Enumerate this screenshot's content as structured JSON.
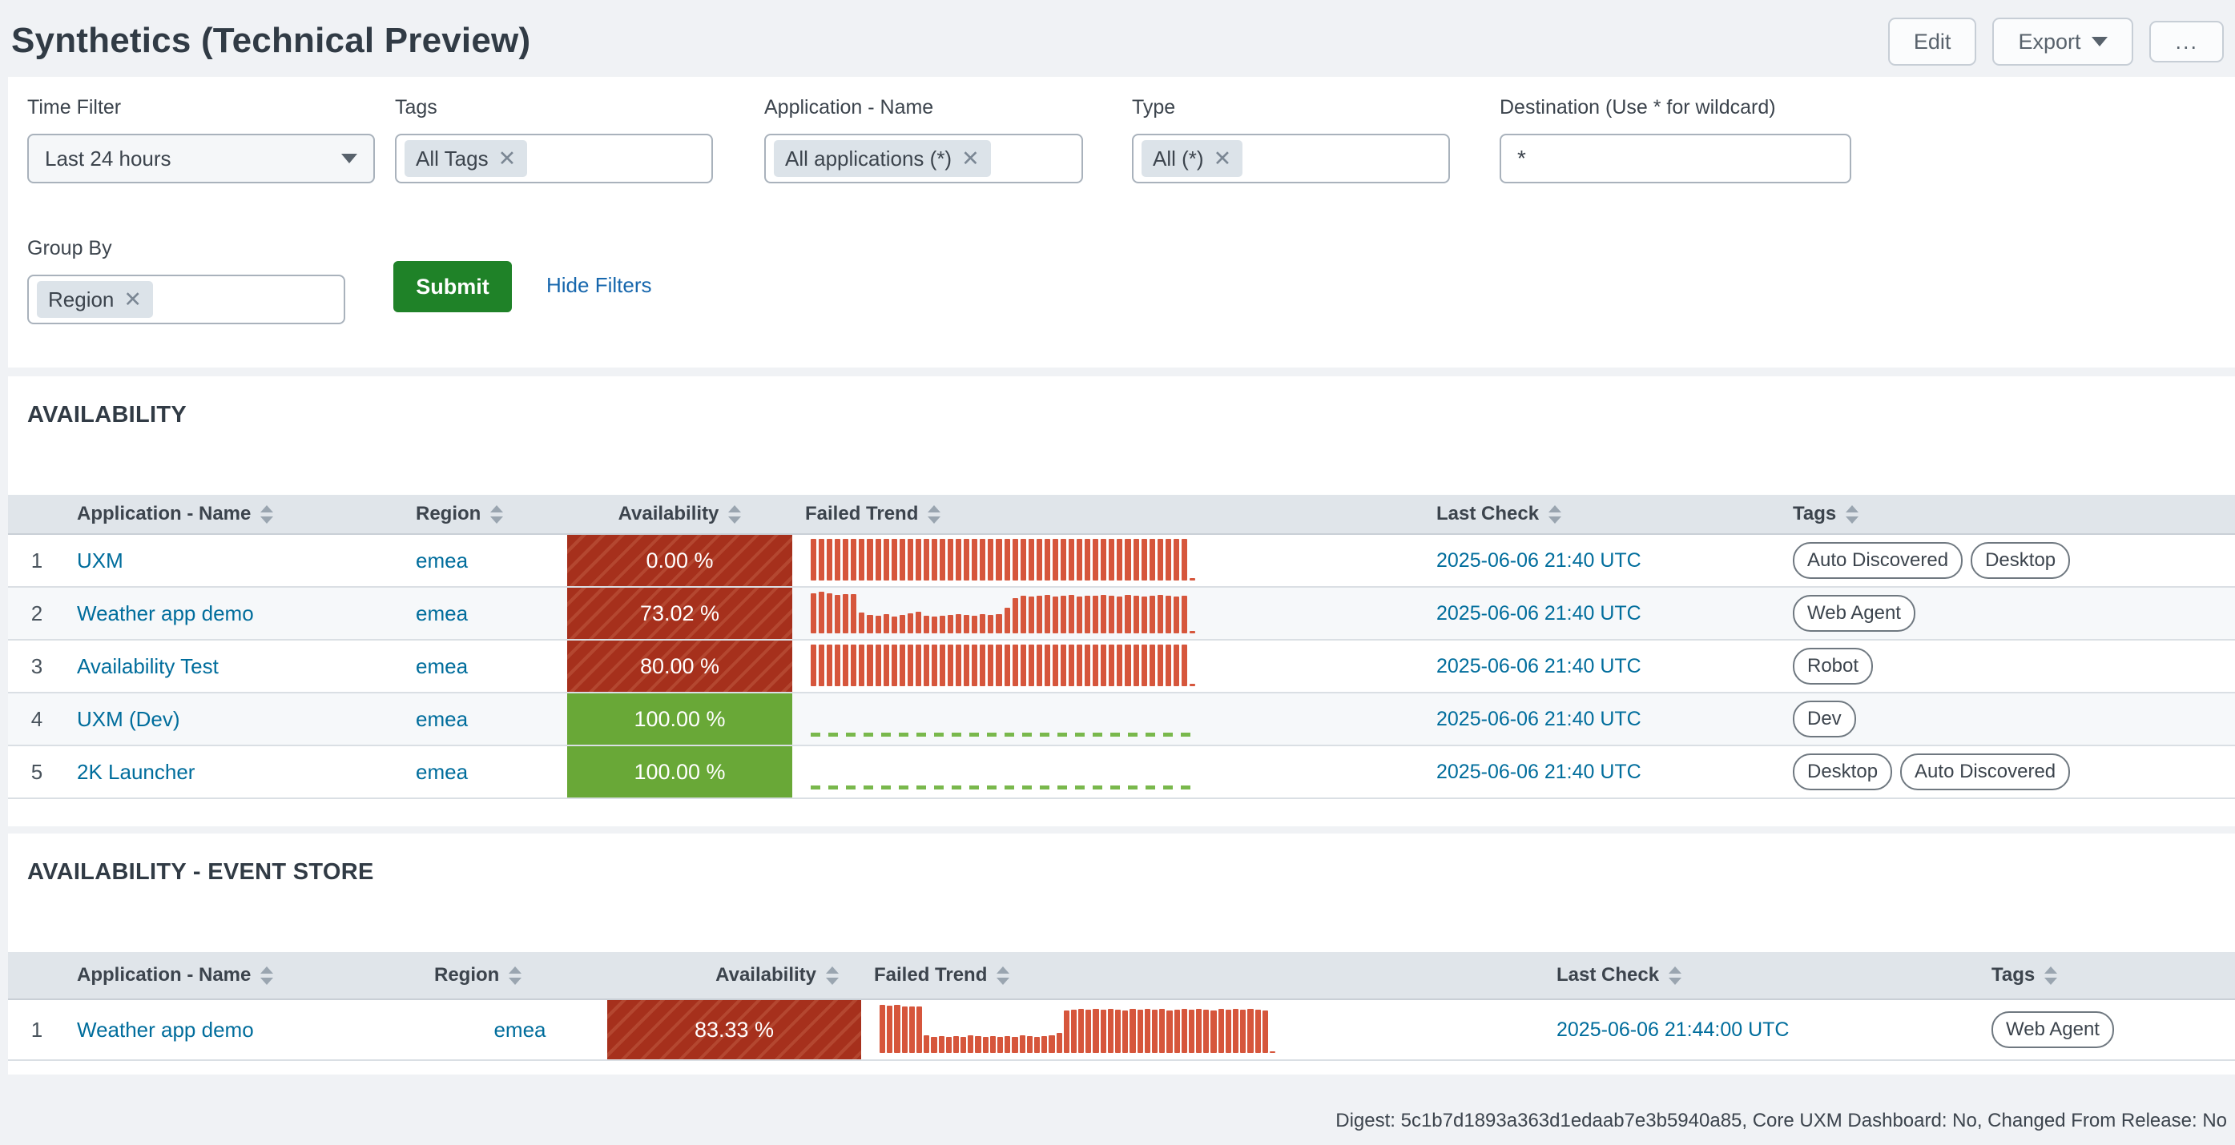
{
  "page": {
    "title": "Synthetics (Technical Preview)"
  },
  "toolbar": {
    "edit_label": "Edit",
    "export_label": "Export",
    "more_label": "..."
  },
  "filters": {
    "time_filter": {
      "label": "Time Filter",
      "value": "Last 24 hours"
    },
    "tags": {
      "label": "Tags",
      "chip": "All Tags"
    },
    "application": {
      "label": "Application - Name",
      "chip": "All applications (*)"
    },
    "type": {
      "label": "Type",
      "chip": "All (*)"
    },
    "destination": {
      "label": "Destination (Use * for wildcard)",
      "value": "*"
    },
    "group_by": {
      "label": "Group By",
      "chip": "Region"
    },
    "submit_label": "Submit",
    "hide_filters_label": "Hide Filters"
  },
  "colors": {
    "critical_red": "#a6301c",
    "ok_green": "#69a837",
    "spark_red": "#d6563c",
    "spark_zero_green": "#79b84c",
    "submit_green": "#1f8228",
    "link_blue": "#006d9c"
  },
  "availability": {
    "title": "AVAILABILITY",
    "columns": [
      "Application - Name",
      "Region",
      "Availability",
      "Failed Trend",
      "Last Check",
      "Tags"
    ],
    "rows": [
      {
        "index": "1",
        "app": "UXM",
        "region": "emea",
        "availability": "0.00 %",
        "availability_state": "critical",
        "failed_trend": {
          "type": "bars",
          "values": [
            1,
            1,
            1,
            1,
            1,
            1,
            1,
            1,
            1,
            1,
            1,
            1,
            1,
            1,
            1,
            1,
            1,
            1,
            1,
            1,
            1,
            1,
            1,
            1,
            1,
            1,
            1,
            1,
            1,
            1,
            1,
            1,
            1,
            1,
            1,
            1,
            1,
            1,
            1,
            1,
            1,
            1,
            1,
            1,
            1,
            1,
            1,
            0.06
          ]
        },
        "last_check": "2025-06-06 21:40 UTC",
        "tags": [
          "Auto Discovered",
          "Desktop"
        ]
      },
      {
        "index": "2",
        "app": "Weather app demo",
        "region": "emea",
        "availability": "73.02 %",
        "availability_state": "critical",
        "failed_trend": {
          "type": "bars",
          "values": [
            0.97,
            1,
            0.96,
            0.93,
            0.95,
            0.94,
            0.5,
            0.45,
            0.42,
            0.46,
            0.4,
            0.44,
            0.48,
            0.52,
            0.43,
            0.41,
            0.43,
            0.45,
            0.47,
            0.44,
            0.42,
            0.46,
            0.44,
            0.47,
            0.62,
            0.85,
            0.9,
            0.88,
            0.91,
            0.92,
            0.88,
            0.9,
            0.93,
            0.88,
            0.9,
            0.91,
            0.92,
            0.9,
            0.88,
            0.92,
            0.9,
            0.89,
            0.91,
            0.92,
            0.9,
            0.88,
            0.91,
            0.06
          ]
        },
        "last_check": "2025-06-06 21:40 UTC",
        "tags": [
          "Web Agent"
        ]
      },
      {
        "index": "3",
        "app": "Availability Test",
        "region": "emea",
        "availability": "80.00 %",
        "availability_state": "critical",
        "failed_trend": {
          "type": "bars",
          "values": [
            1,
            1,
            1,
            1,
            1,
            1,
            1,
            1,
            1,
            1,
            1,
            1,
            1,
            1,
            1,
            1,
            1,
            1,
            1,
            1,
            1,
            1,
            1,
            1,
            1,
            1,
            1,
            1,
            1,
            1,
            1,
            1,
            1,
            1,
            1,
            1,
            1,
            1,
            1,
            1,
            1,
            1,
            1,
            1,
            1,
            1,
            1,
            0.06
          ]
        },
        "last_check": "2025-06-06 21:40 UTC",
        "tags": [
          "Robot"
        ]
      },
      {
        "index": "4",
        "app": "UXM (Dev)",
        "region": "emea",
        "availability": "100.00 %",
        "availability_state": "ok",
        "failed_trend": {
          "type": "zero"
        },
        "last_check": "2025-06-06 21:40 UTC",
        "tags": [
          "Dev"
        ]
      },
      {
        "index": "5",
        "app": "2K Launcher",
        "region": "emea",
        "availability": "100.00 %",
        "availability_state": "ok",
        "failed_trend": {
          "type": "zero"
        },
        "last_check": "2025-06-06 21:40 UTC",
        "tags": [
          "Desktop",
          "Auto Discovered"
        ]
      }
    ]
  },
  "event_store": {
    "title": "AVAILABILITY - EVENT STORE",
    "columns": [
      "Application - Name",
      "Region",
      "Availability",
      "Failed Trend",
      "Last Check",
      "Tags"
    ],
    "rows": [
      {
        "index": "1",
        "app": "Weather app demo",
        "region": "emea",
        "availability": "83.33 %",
        "availability_state": "critical",
        "failed_trend": {
          "type": "bars",
          "values": [
            1,
            0.98,
            1,
            0.97,
            0.96,
            0.97,
            0.36,
            0.34,
            0.35,
            0.33,
            0.35,
            0.34,
            0.36,
            0.35,
            0.34,
            0.35,
            0.33,
            0.35,
            0.34,
            0.36,
            0.35,
            0.34,
            0.35,
            0.36,
            0.42,
            0.88,
            0.9,
            0.92,
            0.9,
            0.91,
            0.9,
            0.92,
            0.9,
            0.89,
            0.91,
            0.9,
            0.92,
            0.9,
            0.91,
            0.89,
            0.9,
            0.92,
            0.9,
            0.91,
            0.9,
            0.89,
            0.92,
            0.9,
            0.91,
            0.9,
            0.92,
            0.9,
            0.89,
            0.04
          ]
        },
        "last_check": "2025-06-06 21:44:00 UTC",
        "tags": [
          "Web Agent"
        ]
      }
    ]
  },
  "footer": {
    "digest": "Digest: 5c1b7d1893a363d1edaab7e3b5940a85, Core UXM Dashboard: No, Changed From Release: No"
  }
}
